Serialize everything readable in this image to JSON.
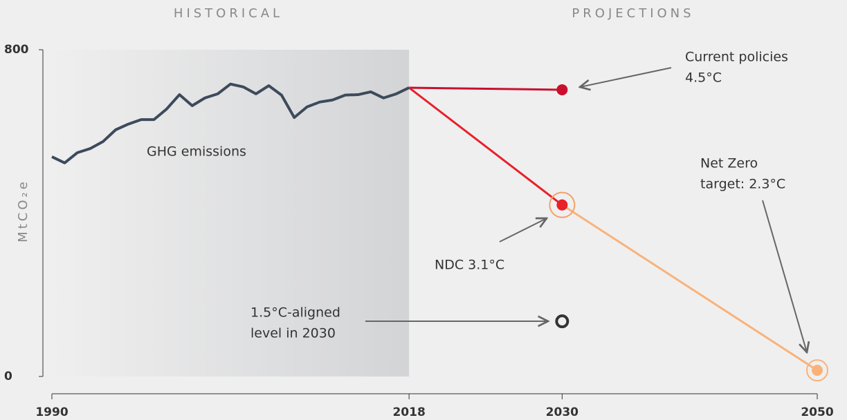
{
  "chart_data": {
    "type": "line",
    "regions": [
      "HISTORICAL",
      "PROJECTIONS"
    ],
    "y_label": "MtCO₂e",
    "xlim": [
      1990,
      2050
    ],
    "xticks": [
      1990,
      2018,
      2030,
      2050
    ],
    "ylim": [
      0,
      800
    ],
    "yticks": [
      0,
      800
    ],
    "series": [
      {
        "name": "GHG emissions",
        "color": "#3d4a5c",
        "x": [
          1990,
          1991,
          1992,
          1993,
          1994,
          1995,
          1996,
          1997,
          1998,
          1999,
          2000,
          2001,
          2002,
          2003,
          2004,
          2005,
          2006,
          2007,
          2008,
          2009,
          2010,
          2011,
          2012,
          2013,
          2014,
          2015,
          2016,
          2017,
          2018
        ],
        "values": [
          538,
          523,
          548,
          558,
          575,
          604,
          618,
          629,
          629,
          655,
          690,
          663,
          682,
          692,
          716,
          709,
          692,
          712,
          689,
          634,
          660,
          672,
          677,
          689,
          690,
          697,
          682,
          692,
          707
        ]
      }
    ],
    "projections": [
      {
        "label": [
          "Current policies",
          "4.5°C"
        ],
        "x": 2030,
        "value": 702,
        "color": "#c8102e"
      },
      {
        "label": [
          "NDC 3.1°C"
        ],
        "x": 2030,
        "value": 420,
        "color": "#e8202a"
      },
      {
        "label": [
          "1.5°C-aligned",
          "level in 2030"
        ],
        "x": 2030,
        "value": 135,
        "color": "#333333"
      },
      {
        "label": [
          "Net Zero",
          "target: 2.3°C"
        ],
        "x": 2050,
        "value": 15,
        "color": "#f9b27a"
      }
    ]
  }
}
